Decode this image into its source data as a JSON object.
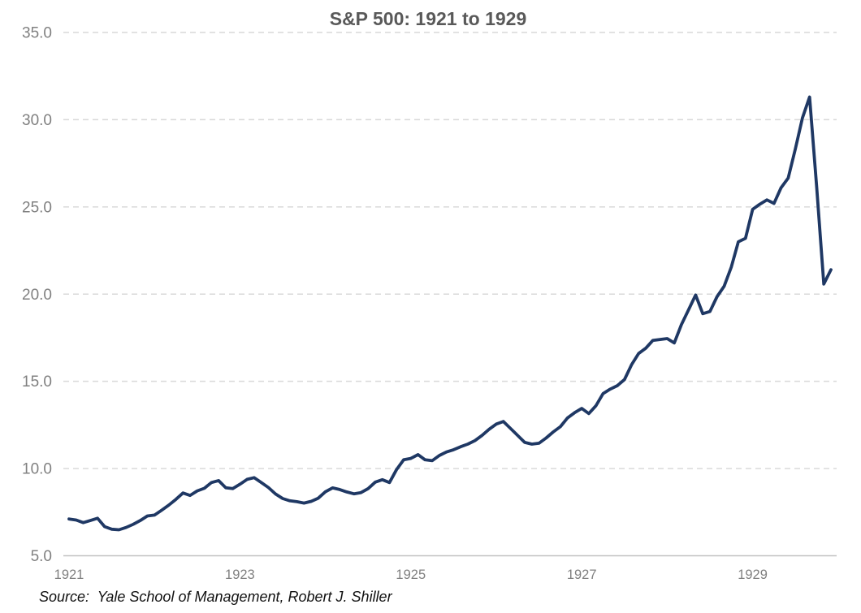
{
  "chart": {
    "title": "S&P 500: 1921 to 1929",
    "source_note": "Source:  Yale School of Management, Robert J. Shiller"
  },
  "colors": {
    "line": "#1f3864",
    "title_text": "#595959",
    "tick_text": "#808080",
    "gridline": "#d9d9d9",
    "axis_line": "#c1c1c1",
    "background": "#ffffff"
  },
  "chart_data": {
    "type": "line",
    "title": "S&P 500: 1921 to 1929",
    "source": "Source:  Yale School of Management, Robert J. Shiller",
    "frequency": "monthly",
    "x_start_year": 1921,
    "x_end_year": 1929,
    "x_tick_labels": [
      "1921",
      "1923",
      "1925",
      "1927",
      "1929"
    ],
    "x_tick_month_index": [
      0,
      24,
      48,
      72,
      96
    ],
    "y_ticks": [
      5.0,
      10.0,
      15.0,
      20.0,
      25.0,
      30.0,
      35.0
    ],
    "y_tick_labels": [
      "5.0",
      "10.0",
      "15.0",
      "20.0",
      "25.0",
      "30.0",
      "35.0"
    ],
    "ylim": [
      5,
      35
    ],
    "grid": "horizontal-dashed",
    "legend": "none",
    "xlabel": "",
    "ylabel": "",
    "series": [
      {
        "name": "S&P 500",
        "values": [
          7.11,
          7.05,
          6.9,
          7.02,
          7.15,
          6.67,
          6.52,
          6.49,
          6.62,
          6.8,
          7.02,
          7.28,
          7.33,
          7.61,
          7.9,
          8.23,
          8.6,
          8.46,
          8.72,
          8.87,
          9.2,
          9.31,
          8.9,
          8.85,
          9.1,
          9.38,
          9.48,
          9.2,
          8.91,
          8.54,
          8.28,
          8.15,
          8.1,
          8.02,
          8.12,
          8.3,
          8.67,
          8.89,
          8.8,
          8.66,
          8.55,
          8.62,
          8.85,
          9.22,
          9.36,
          9.2,
          9.95,
          10.5,
          10.58,
          10.8,
          10.5,
          10.45,
          10.75,
          10.95,
          11.08,
          11.25,
          11.4,
          11.6,
          11.9,
          12.25,
          12.55,
          12.7,
          12.3,
          11.9,
          11.5,
          11.4,
          11.45,
          11.75,
          12.1,
          12.4,
          12.9,
          13.2,
          13.45,
          13.15,
          13.6,
          14.3,
          14.55,
          14.75,
          15.1,
          15.95,
          16.6,
          16.9,
          17.35,
          17.4,
          17.45,
          17.2,
          18.25,
          19.1,
          19.95,
          18.88,
          19.0,
          19.85,
          20.45,
          21.55,
          23.0,
          23.2,
          24.86,
          25.15,
          25.4,
          25.2,
          26.1,
          26.66,
          28.33,
          30.1,
          31.3,
          26.1,
          20.58,
          21.4
        ]
      }
    ]
  }
}
